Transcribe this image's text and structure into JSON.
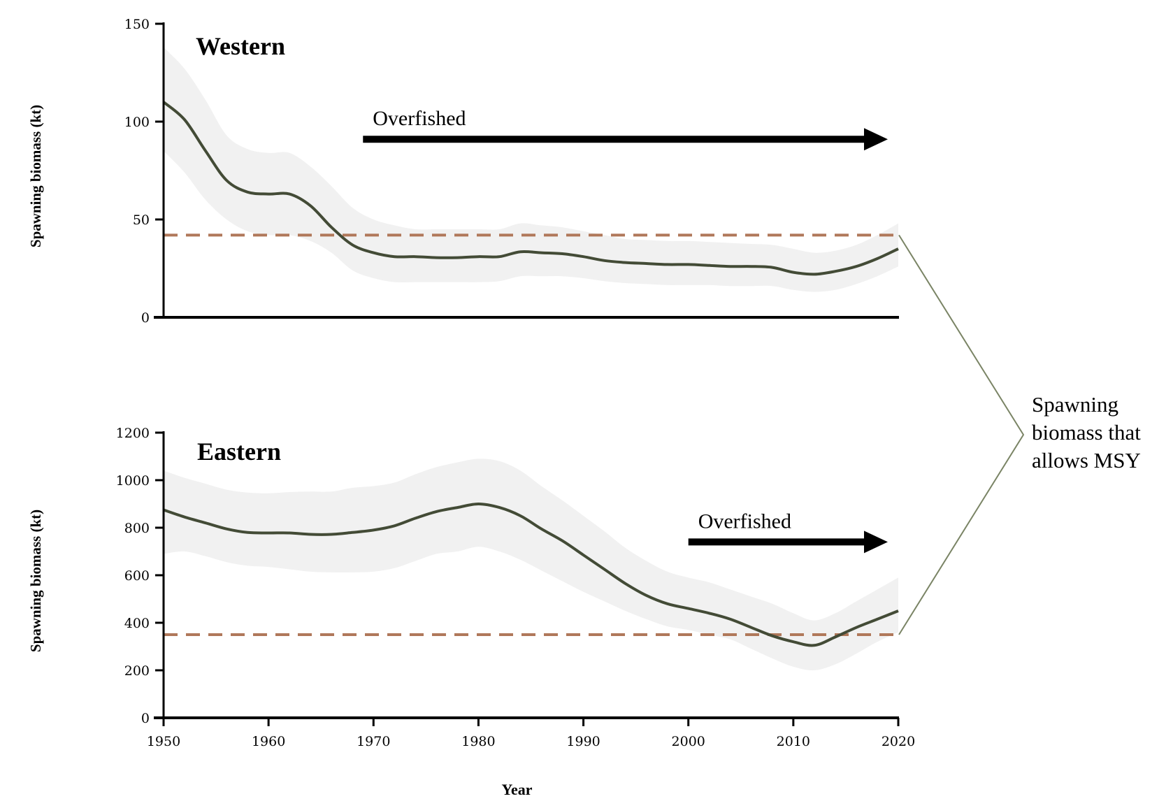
{
  "chart_data": [
    {
      "type": "line",
      "title": "Western",
      "xlabel": "",
      "ylabel": "Spawning biomass (kt)",
      "xlim": [
        1950,
        2020
      ],
      "ylim": [
        0,
        150
      ],
      "y_ticks": [
        0,
        50,
        100,
        150
      ],
      "msy_level": 42,
      "annotation": {
        "label": "Overfished",
        "from_year": 1969,
        "to_year": 2019,
        "arrow_y": 91
      },
      "series": [
        {
          "x": [
            1950,
            1952,
            1954,
            1956,
            1958,
            1960,
            1962,
            1964,
            1966,
            1968,
            1970,
            1972,
            1974,
            1976,
            1978,
            1980,
            1982,
            1984,
            1986,
            1988,
            1990,
            1992,
            1994,
            1996,
            1998,
            2000,
            2002,
            2004,
            2006,
            2008,
            2010,
            2012,
            2014,
            2016,
            2018,
            2020
          ],
          "y": [
            110,
            101,
            85,
            70,
            64,
            63,
            63,
            57,
            46,
            37,
            33,
            31,
            31,
            30.5,
            30.5,
            31,
            31,
            33.5,
            33,
            32.5,
            31,
            29,
            28,
            27.5,
            27,
            27,
            26.5,
            26,
            26,
            25.5,
            23,
            22,
            23.5,
            26,
            30,
            35
          ],
          "lower": [
            85,
            74,
            60,
            50,
            44,
            42,
            42,
            39,
            33,
            24,
            20,
            18,
            18,
            18,
            18,
            18,
            18.5,
            21,
            21,
            21,
            20,
            18.5,
            17.5,
            17,
            16.5,
            16.5,
            16.5,
            16,
            16,
            16,
            14,
            13,
            14,
            17,
            21,
            26
          ],
          "upper": [
            138,
            127,
            111,
            93,
            86,
            84,
            84,
            77,
            67,
            56,
            50,
            47,
            45,
            45,
            45,
            45,
            45,
            48,
            47,
            46,
            44,
            42,
            40,
            39.5,
            39,
            39,
            38.5,
            38,
            37.5,
            37,
            35,
            33,
            34,
            37,
            42,
            48
          ]
        }
      ]
    },
    {
      "type": "line",
      "title": "Eastern",
      "xlabel": "Year",
      "ylabel": "Spawning biomass (kt)",
      "xlim": [
        1950,
        2020
      ],
      "ylim": [
        0,
        1200
      ],
      "x_ticks": [
        1950,
        1960,
        1970,
        1980,
        1990,
        2000,
        2010,
        2020
      ],
      "y_ticks": [
        0,
        200,
        400,
        600,
        800,
        1000,
        1200
      ],
      "msy_level": 350,
      "annotation": {
        "label": "Overfished",
        "from_year": 2000,
        "to_year": 2019,
        "arrow_y": 740
      },
      "series": [
        {
          "x": [
            1950,
            1952,
            1954,
            1956,
            1958,
            1960,
            1962,
            1964,
            1966,
            1968,
            1970,
            1972,
            1974,
            1976,
            1978,
            1980,
            1982,
            1984,
            1986,
            1988,
            1990,
            1992,
            1994,
            1996,
            1998,
            2000,
            2002,
            2004,
            2006,
            2008,
            2010,
            2012,
            2014,
            2016,
            2018,
            2020
          ],
          "y": [
            875,
            845,
            820,
            795,
            780,
            778,
            778,
            772,
            772,
            780,
            790,
            808,
            840,
            868,
            885,
            900,
            885,
            850,
            795,
            745,
            685,
            625,
            565,
            515,
            480,
            460,
            440,
            415,
            380,
            345,
            320,
            305,
            340,
            380,
            415,
            450
          ],
          "lower": [
            690,
            700,
            680,
            655,
            640,
            635,
            625,
            615,
            612,
            612,
            615,
            630,
            660,
            690,
            700,
            720,
            700,
            665,
            620,
            575,
            530,
            490,
            450,
            415,
            385,
            370,
            350,
            330,
            290,
            250,
            215,
            200,
            225,
            270,
            320,
            360
          ],
          "upper": [
            1040,
            1010,
            985,
            960,
            948,
            945,
            950,
            952,
            952,
            968,
            975,
            990,
            1025,
            1055,
            1075,
            1090,
            1080,
            1040,
            975,
            915,
            850,
            785,
            715,
            660,
            615,
            590,
            570,
            540,
            510,
            480,
            440,
            410,
            440,
            490,
            540,
            590
          ]
        }
      ]
    }
  ],
  "legend": {
    "lines": [
      "Spawning",
      "biomass that",
      "allows MSY"
    ]
  }
}
